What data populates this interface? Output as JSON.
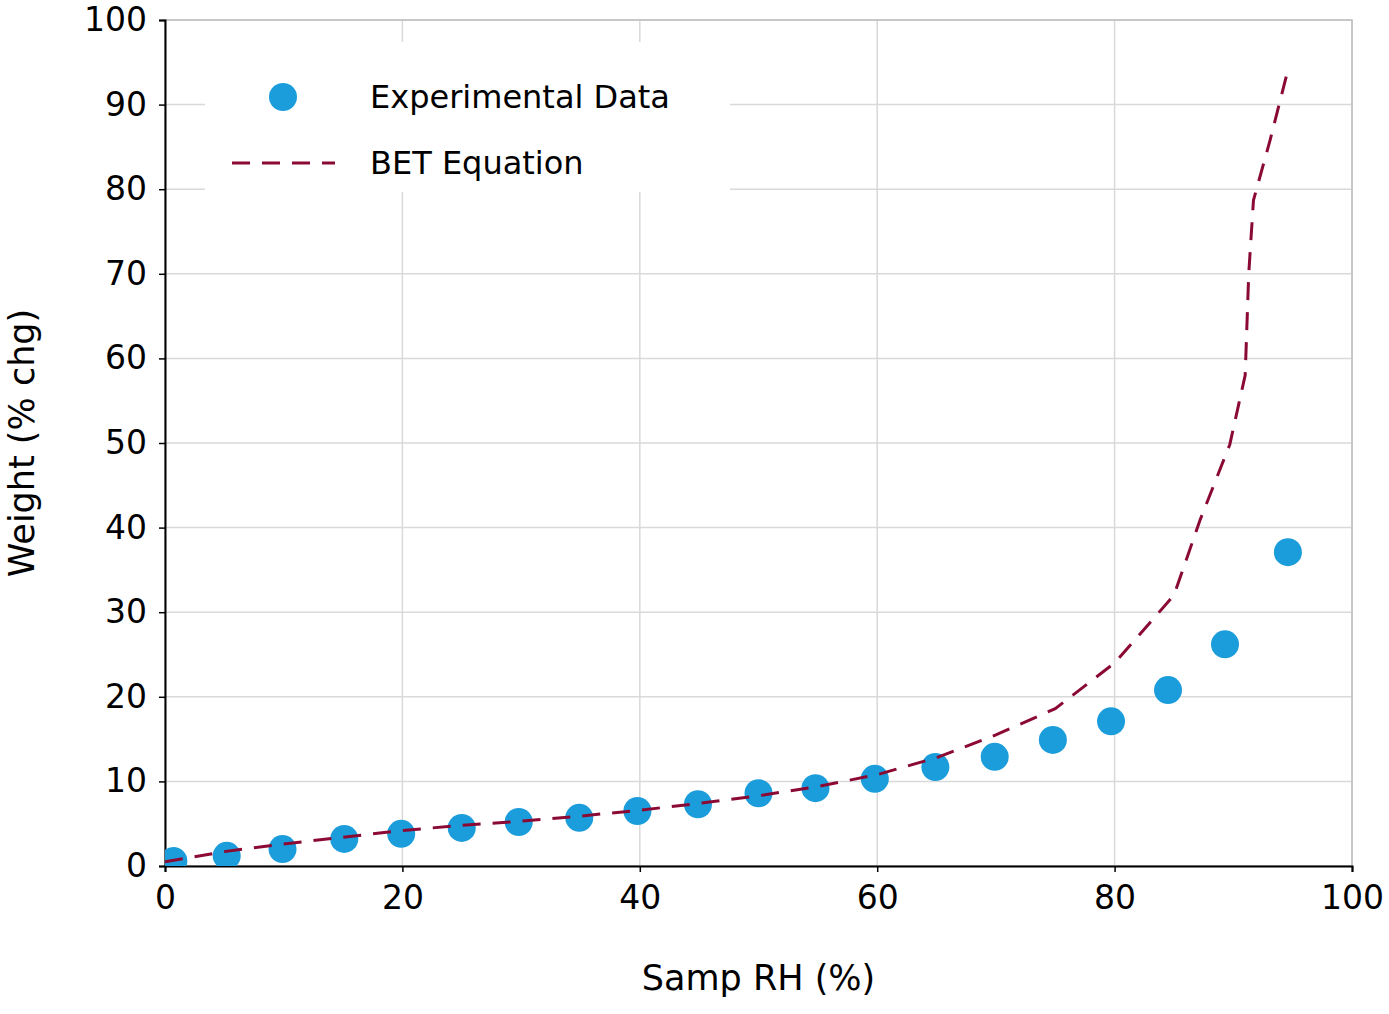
{
  "chart_data": {
    "type": "scatter",
    "x_label": "Samp RH (%)",
    "y_label": "Weight (% chg)",
    "xlim": [
      0,
      100
    ],
    "ylim": [
      0,
      100
    ],
    "xticks": [
      0,
      20,
      40,
      60,
      80,
      100
    ],
    "yticks": [
      0,
      10,
      20,
      30,
      40,
      50,
      60,
      70,
      80,
      90,
      100
    ],
    "grid": true,
    "legend": "upper left",
    "series": [
      {
        "name": "Experimental Data",
        "type": "scatter",
        "marker": "circle",
        "color": "#1b9ddb",
        "x": [
          0.7,
          5.2,
          9.9,
          15.1,
          19.9,
          25.0,
          29.8,
          34.9,
          39.8,
          44.9,
          50.0,
          54.8,
          59.8,
          64.9,
          69.9,
          74.8,
          79.7,
          84.5,
          89.3,
          94.6
        ],
        "values": [
          0.6,
          1.2,
          2.0,
          3.2,
          3.8,
          4.5,
          5.2,
          5.7,
          6.5,
          7.3,
          8.6,
          9.2,
          10.3,
          11.7,
          12.9,
          14.9,
          17.1,
          20.8,
          26.2,
          37.1
        ]
      },
      {
        "name": "BET Equation",
        "type": "line",
        "line_style": "dashed",
        "color": "#8b0a33",
        "x": [
          0,
          5,
          10,
          15,
          20,
          25,
          30,
          35,
          40,
          45,
          50,
          55,
          60,
          65,
          70,
          75,
          80,
          85,
          87.2,
          89.7,
          91.0,
          91.3,
          91.7,
          93.1,
          94.6
        ],
        "values": [
          0.5,
          1.7,
          2.6,
          3.4,
          4.2,
          4.8,
          5.3,
          5.9,
          6.6,
          7.4,
          8.3,
          9.4,
          10.8,
          12.8,
          15.5,
          18.6,
          24.0,
          32.0,
          40.9,
          49.8,
          58.0,
          70.0,
          78.7,
          85.8,
          94.1
        ]
      }
    ]
  }
}
